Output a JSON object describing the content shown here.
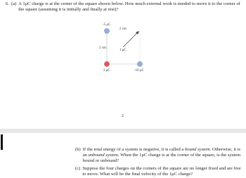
{
  "problem": {
    "number": "6.",
    "part_a": {
      "label": "(a)",
      "text": "A 1μC charge is at the center of the square shown below. How much external work is needed to move it to the corner of the square (assuming it is initially and finally at rest)?"
    },
    "figure": {
      "top_left": "-5 μC",
      "top_side": "2 cm",
      "left_side": "2 cm",
      "center": "1 μC",
      "bottom_left": "2 μC",
      "bottom_right": "-10 μC"
    },
    "page_number": "2",
    "part_b": {
      "label": "(b)",
      "segments": [
        "If the total energy of a system is negative, it is called a ",
        "bound system",
        ". Otherwise, it is an ",
        "unbound system",
        ". When the 1μC charge is at the corner of the square, is the system bound or unbound?"
      ]
    },
    "part_c": {
      "label": "(c)",
      "text": "Suppose the four charges on the corners of the square are no longer fixed and are free to move. What will be the final velocity of the 1μC charge?"
    }
  }
}
